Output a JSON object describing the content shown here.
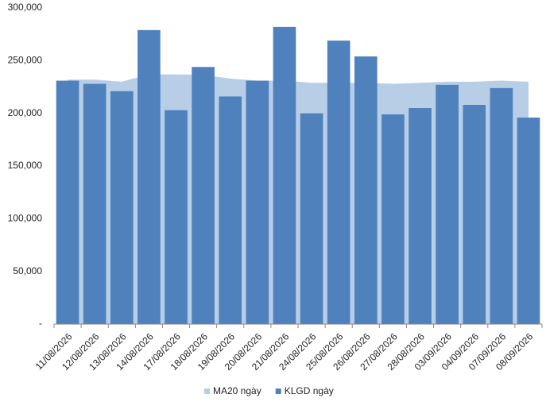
{
  "chart_data": {
    "type": "bar",
    "categories": [
      "11/08/2026",
      "12/08/2026",
      "13/08/2026",
      "14/08/2026",
      "17/08/2026",
      "18/08/2026",
      "19/08/2026",
      "20/08/2026",
      "21/08/2026",
      "24/08/2026",
      "25/08/2026",
      "26/08/2026",
      "27/08/2026",
      "28/08/2026",
      "03/09/2026",
      "04/09/2026",
      "07/09/2026",
      "08/09/2026"
    ],
    "series": [
      {
        "name": "MA20 ngày",
        "type": "area",
        "color": "#b8cde6",
        "values": [
          232000,
          232000,
          230000,
          237000,
          237000,
          236500,
          233000,
          231000,
          231000,
          229000,
          229000,
          229000,
          228000,
          229000,
          230000,
          230000,
          231000,
          230000
        ]
      },
      {
        "name": "KLGD ngày",
        "type": "bar",
        "color": "#4f81bd",
        "values": [
          231000,
          228000,
          221000,
          279000,
          203000,
          244000,
          216000,
          231000,
          282000,
          200000,
          269000,
          254000,
          199000,
          205000,
          227000,
          208000,
          224000,
          196000
        ]
      }
    ],
    "ylim": [
      0,
      300000
    ],
    "yticks": [
      {
        "value": 0,
        "label": "-"
      },
      {
        "value": 50000,
        "label": "50,000"
      },
      {
        "value": 100000,
        "label": "100,000"
      },
      {
        "value": 150000,
        "label": "150,000"
      },
      {
        "value": 200000,
        "label": "200,000"
      },
      {
        "value": 250000,
        "label": "250,000"
      },
      {
        "value": 300000,
        "label": "300,000"
      }
    ],
    "legend": "bottom"
  }
}
